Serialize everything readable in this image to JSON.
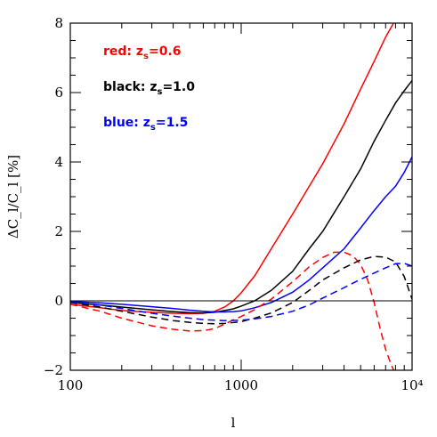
{
  "chart_data": {
    "type": "line",
    "xlabel": "l",
    "ylabel": "ΔC_l/C_l [%]",
    "xscale": "log",
    "xlim": [
      100,
      10000
    ],
    "ylim": [
      -2,
      8
    ],
    "x_ticks": [
      {
        "value": 100,
        "label": "100"
      },
      {
        "value": 1000,
        "label": "1000"
      },
      {
        "value": 10000,
        "label": "10⁴"
      }
    ],
    "y_ticks": [
      {
        "value": -2,
        "label": "−2"
      },
      {
        "value": 0,
        "label": "0"
      },
      {
        "value": 2,
        "label": "2"
      },
      {
        "value": 4,
        "label": "4"
      },
      {
        "value": 6,
        "label": "6"
      },
      {
        "value": 8,
        "label": "8"
      }
    ],
    "zero_line": true,
    "legend": {
      "placement": "top-left",
      "entries": [
        {
          "prefix": "red:",
          "sub": "s",
          "value": "=0.6",
          "color": "#ff0000"
        },
        {
          "prefix": "black:",
          "sub": "s",
          "value": "=1.0",
          "color": "#000000"
        },
        {
          "prefix": "blue:",
          "sub": "s",
          "value": "=1.5",
          "color": "#0000ff"
        }
      ]
    },
    "series": [
      {
        "color": "#ff0000",
        "dash": "solid",
        "points": [
          [
            100,
            -0.1
          ],
          [
            150,
            -0.2
          ],
          [
            200,
            -0.28
          ],
          [
            300,
            -0.33
          ],
          [
            400,
            -0.36
          ],
          [
            500,
            -0.37
          ],
          [
            600,
            -0.36
          ],
          [
            700,
            -0.3
          ],
          [
            800,
            -0.18
          ],
          [
            900,
            0
          ],
          [
            1000,
            0.23
          ],
          [
            1200,
            0.72
          ],
          [
            1500,
            1.5
          ],
          [
            2000,
            2.5
          ],
          [
            3000,
            3.95
          ],
          [
            4000,
            5.1
          ],
          [
            5000,
            6.1
          ],
          [
            6000,
            6.9
          ],
          [
            7000,
            7.6
          ],
          [
            8000,
            8.1
          ]
        ]
      },
      {
        "color": "#000000",
        "dash": "solid",
        "points": [
          [
            100,
            -0.05
          ],
          [
            150,
            -0.12
          ],
          [
            200,
            -0.18
          ],
          [
            300,
            -0.26
          ],
          [
            400,
            -0.31
          ],
          [
            500,
            -0.34
          ],
          [
            600,
            -0.35
          ],
          [
            700,
            -0.33
          ],
          [
            800,
            -0.28
          ],
          [
            900,
            -0.23
          ],
          [
            1000,
            -0.15
          ],
          [
            1200,
            0
          ],
          [
            1500,
            0.3
          ],
          [
            2000,
            0.85
          ],
          [
            2500,
            1.5
          ],
          [
            3000,
            2.0
          ],
          [
            4000,
            3.0
          ],
          [
            5000,
            3.8
          ],
          [
            6000,
            4.6
          ],
          [
            7000,
            5.2
          ],
          [
            8000,
            5.7
          ],
          [
            9000,
            6.05
          ],
          [
            10000,
            6.35
          ]
        ]
      },
      {
        "color": "#0000ff",
        "dash": "solid",
        "points": [
          [
            100,
            -0.02
          ],
          [
            150,
            -0.06
          ],
          [
            200,
            -0.1
          ],
          [
            300,
            -0.17
          ],
          [
            400,
            -0.22
          ],
          [
            500,
            -0.27
          ],
          [
            600,
            -0.3
          ],
          [
            700,
            -0.32
          ],
          [
            800,
            -0.32
          ],
          [
            900,
            -0.31
          ],
          [
            1000,
            -0.29
          ],
          [
            1200,
            -0.2
          ],
          [
            1500,
            -0.05
          ],
          [
            2000,
            0.25
          ],
          [
            2500,
            0.6
          ],
          [
            3000,
            0.95
          ],
          [
            4000,
            1.5
          ],
          [
            5000,
            2.1
          ],
          [
            6000,
            2.6
          ],
          [
            7000,
            3.0
          ],
          [
            8000,
            3.3
          ],
          [
            9000,
            3.7
          ],
          [
            10000,
            4.15
          ]
        ]
      },
      {
        "color": "#ff0000",
        "dash": "dashed",
        "points": [
          [
            100,
            -0.1
          ],
          [
            150,
            -0.3
          ],
          [
            200,
            -0.5
          ],
          [
            300,
            -0.72
          ],
          [
            400,
            -0.82
          ],
          [
            500,
            -0.87
          ],
          [
            600,
            -0.86
          ],
          [
            700,
            -0.8
          ],
          [
            800,
            -0.67
          ],
          [
            900,
            -0.55
          ],
          [
            1000,
            -0.45
          ],
          [
            1200,
            -0.25
          ],
          [
            1500,
            0.05
          ],
          [
            2000,
            0.55
          ],
          [
            2500,
            0.98
          ],
          [
            3000,
            1.25
          ],
          [
            3500,
            1.4
          ],
          [
            4000,
            1.4
          ],
          [
            4500,
            1.3
          ],
          [
            5000,
            1.05
          ],
          [
            5500,
            0.6
          ],
          [
            6000,
            -0.05
          ],
          [
            6500,
            -0.8
          ],
          [
            7000,
            -1.4
          ],
          [
            7500,
            -1.8
          ],
          [
            7800,
            -2.0
          ]
        ]
      },
      {
        "color": "#000000",
        "dash": "dashed",
        "points": [
          [
            100,
            -0.05
          ],
          [
            150,
            -0.18
          ],
          [
            200,
            -0.3
          ],
          [
            300,
            -0.47
          ],
          [
            400,
            -0.57
          ],
          [
            500,
            -0.62
          ],
          [
            600,
            -0.65
          ],
          [
            700,
            -0.66
          ],
          [
            800,
            -0.65
          ],
          [
            1000,
            -0.6
          ],
          [
            1200,
            -0.5
          ],
          [
            1500,
            -0.35
          ],
          [
            2000,
            -0.05
          ],
          [
            2500,
            0.3
          ],
          [
            3000,
            0.6
          ],
          [
            4000,
            0.95
          ],
          [
            5000,
            1.18
          ],
          [
            6000,
            1.28
          ],
          [
            7000,
            1.26
          ],
          [
            8000,
            1.12
          ],
          [
            9000,
            0.7
          ],
          [
            10000,
            0.05
          ]
        ]
      },
      {
        "color": "#0000ff",
        "dash": "dashed",
        "points": [
          [
            100,
            -0.03
          ],
          [
            150,
            -0.12
          ],
          [
            200,
            -0.22
          ],
          [
            300,
            -0.36
          ],
          [
            400,
            -0.44
          ],
          [
            500,
            -0.5
          ],
          [
            600,
            -0.54
          ],
          [
            700,
            -0.56
          ],
          [
            800,
            -0.57
          ],
          [
            1000,
            -0.56
          ],
          [
            1200,
            -0.52
          ],
          [
            1500,
            -0.45
          ],
          [
            2000,
            -0.3
          ],
          [
            2500,
            -0.12
          ],
          [
            3000,
            0.08
          ],
          [
            4000,
            0.38
          ],
          [
            5000,
            0.62
          ],
          [
            6000,
            0.8
          ],
          [
            7000,
            0.95
          ],
          [
            8000,
            1.07
          ],
          [
            9000,
            1.08
          ],
          [
            10000,
            1.0
          ]
        ]
      }
    ]
  }
}
